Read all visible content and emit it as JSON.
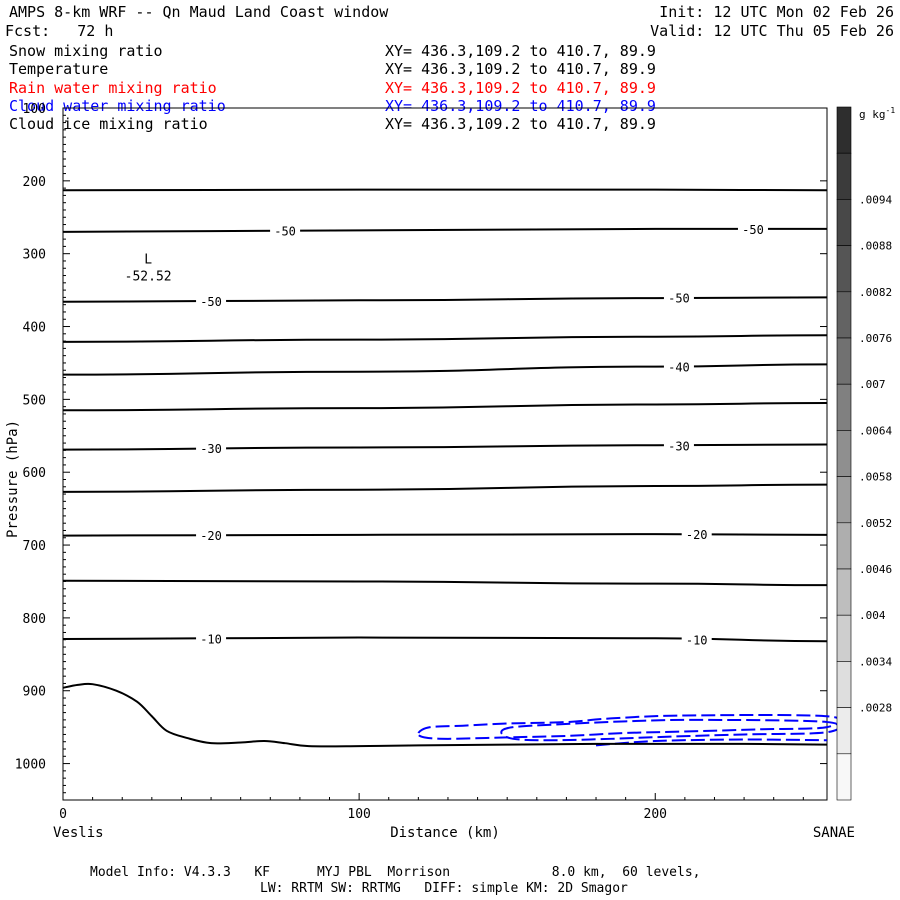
{
  "header": {
    "title": "AMPS 8-km WRF -- Qn Maud Land Coast window",
    "init": "Init: 12 UTC Mon 02 Feb 26",
    "fcst": "Fcst:   72 h",
    "valid": "Valid: 12 UTC Thu 05 Feb 26"
  },
  "fields": [
    {
      "name": "Snow mixing ratio",
      "xy": "XY= 436.3,109.2 to 410.7, 89.9",
      "color": "#000000"
    },
    {
      "name": "Temperature",
      "xy": "XY= 436.3,109.2 to 410.7, 89.9",
      "color": "#000000"
    },
    {
      "name": "Rain water mixing ratio",
      "xy": "XY= 436.3,109.2 to 410.7, 89.9",
      "color": "#ff0000"
    },
    {
      "name": "Cloud water mixing ratio",
      "xy": "XY= 436.3,109.2 to 410.7, 89.9",
      "color": "#0000ff"
    },
    {
      "name": "Cloud ice mixing ratio",
      "xy": "XY= 436.3,109.2 to 410.7, 89.9",
      "color": "#000000"
    }
  ],
  "footer": {
    "line1": "Model Info: V4.3.3   KF      MYJ PBL  Morrison             8.0 km,  60 levels,",
    "line2": "LW: RRTM SW: RRTMG   DIFF: simple KM: 2D Smagor"
  },
  "chart_data": {
    "type": "cross-section",
    "xlabel": "Distance (km)",
    "ylabel": "Pressure (hPa)",
    "xlim": [
      0,
      258
    ],
    "ylim": [
      1050,
      100
    ],
    "x_ticks": [
      0,
      100,
      200
    ],
    "y_ticks": [
      100,
      200,
      300,
      400,
      500,
      600,
      700,
      800,
      900,
      1000
    ],
    "left_endpoint": "Veslis",
    "right_endpoint": "SANAE",
    "colorbar": {
      "unit": "g kg",
      "unit_exp": "-1",
      "labels": [
        ".0094",
        ".0088",
        ".0082",
        ".0076",
        ".007",
        ".0064",
        ".0058",
        ".0052",
        ".0046",
        ".004",
        ".0034",
        ".0028"
      ],
      "colors": [
        "#2e2e2e",
        "#3b3b3b",
        "#484848",
        "#555555",
        "#636363",
        "#717171",
        "#808080",
        "#8f8f8f",
        "#9e9e9e",
        "#aeaeae",
        "#bebebe",
        "#cecece",
        "#dedede",
        "#ececec",
        "#f8f8f8"
      ]
    },
    "low_marker": {
      "label": "L",
      "value": "-52.52",
      "x": 22,
      "p": 320
    },
    "temperature_isotherms": [
      {
        "points": [
          [
            0,
            213
          ],
          [
            100,
            212
          ],
          [
            200,
            212
          ],
          [
            258,
            213
          ]
        ],
        "labels": []
      },
      {
        "points": [
          [
            0,
            270
          ],
          [
            100,
            268
          ],
          [
            200,
            266
          ],
          [
            258,
            266
          ]
        ],
        "labels": [
          {
            "x": 75,
            "p": 268,
            "text": "-50"
          },
          {
            "x": 233,
            "p": 266,
            "text": "-50"
          }
        ]
      },
      {
        "points": [
          [
            0,
            366
          ],
          [
            100,
            364
          ],
          [
            200,
            361
          ],
          [
            258,
            360
          ]
        ],
        "labels": [
          {
            "x": 50,
            "p": 365,
            "text": "-50"
          },
          {
            "x": 208,
            "p": 360,
            "text": "-50"
          }
        ]
      },
      {
        "points": [
          [
            0,
            421
          ],
          [
            100,
            418
          ],
          [
            200,
            414
          ],
          [
            258,
            412
          ]
        ],
        "labels": []
      },
      {
        "points": [
          [
            0,
            466
          ],
          [
            100,
            462
          ],
          [
            200,
            455
          ],
          [
            258,
            452
          ]
        ],
        "labels": [
          {
            "x": 208,
            "p": 455,
            "text": "-40"
          }
        ]
      },
      {
        "points": [
          [
            0,
            515
          ],
          [
            100,
            512
          ],
          [
            200,
            507
          ],
          [
            258,
            505
          ]
        ],
        "labels": []
      },
      {
        "points": [
          [
            0,
            569
          ],
          [
            100,
            566
          ],
          [
            200,
            563
          ],
          [
            258,
            562
          ]
        ],
        "labels": [
          {
            "x": 50,
            "p": 567,
            "text": "-30"
          },
          {
            "x": 208,
            "p": 563,
            "text": "-30"
          }
        ]
      },
      {
        "points": [
          [
            0,
            627
          ],
          [
            100,
            624
          ],
          [
            200,
            619
          ],
          [
            258,
            617
          ]
        ],
        "labels": []
      },
      {
        "points": [
          [
            0,
            687
          ],
          [
            100,
            686
          ],
          [
            200,
            685
          ],
          [
            258,
            686
          ]
        ],
        "labels": [
          {
            "x": 50,
            "p": 686,
            "text": "-20"
          },
          {
            "x": 214,
            "p": 685,
            "text": "-20"
          }
        ]
      },
      {
        "points": [
          [
            0,
            749
          ],
          [
            100,
            750
          ],
          [
            200,
            753
          ],
          [
            258,
            755
          ]
        ],
        "labels": []
      },
      {
        "points": [
          [
            0,
            829
          ],
          [
            100,
            827
          ],
          [
            200,
            828
          ],
          [
            258,
            832
          ]
        ],
        "labels": [
          {
            "x": 50,
            "p": 828,
            "text": "-10"
          },
          {
            "x": 214,
            "p": 830,
            "text": "-10"
          }
        ]
      }
    ],
    "terrain": [
      [
        0,
        896
      ],
      [
        5,
        892
      ],
      [
        10,
        891
      ],
      [
        18,
        900
      ],
      [
        25,
        915
      ],
      [
        30,
        935
      ],
      [
        35,
        955
      ],
      [
        42,
        965
      ],
      [
        50,
        972
      ],
      [
        60,
        971
      ],
      [
        68,
        969
      ],
      [
        75,
        972
      ],
      [
        83,
        976
      ],
      [
        100,
        976
      ],
      [
        120,
        975
      ],
      [
        150,
        974
      ],
      [
        180,
        973
      ],
      [
        200,
        973
      ],
      [
        230,
        973
      ],
      [
        258,
        974
      ]
    ],
    "cloud_water_contours": [
      {
        "closed": true,
        "points": [
          [
            120,
            958
          ],
          [
            124,
            950
          ],
          [
            135,
            948
          ],
          [
            150,
            945
          ],
          [
            170,
            943
          ],
          [
            185,
            938
          ],
          [
            210,
            934
          ],
          [
            258,
            935
          ],
          [
            258,
            950
          ],
          [
            235,
            953
          ],
          [
            210,
            956
          ],
          [
            190,
            958
          ],
          [
            170,
            962
          ],
          [
            150,
            964
          ],
          [
            130,
            966
          ],
          [
            122,
            964
          ]
        ]
      },
      {
        "closed": true,
        "points": [
          [
            148,
            957
          ],
          [
            152,
            950
          ],
          [
            168,
            946
          ],
          [
            190,
            942
          ],
          [
            215,
            940
          ],
          [
            258,
            943
          ],
          [
            258,
            957
          ],
          [
            230,
            960
          ],
          [
            205,
            963
          ],
          [
            185,
            966
          ],
          [
            165,
            968
          ],
          [
            152,
            966
          ]
        ]
      },
      {
        "closed": false,
        "points": [
          [
            180,
            975
          ],
          [
            200,
            969
          ],
          [
            230,
            967
          ],
          [
            258,
            968
          ]
        ]
      }
    ]
  }
}
